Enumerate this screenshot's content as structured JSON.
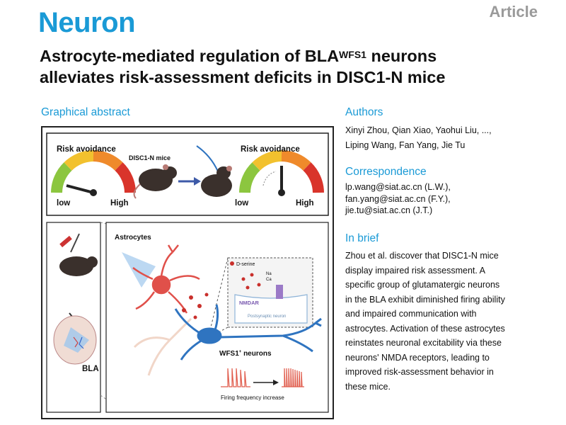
{
  "journal": "Neuron",
  "article_type": "Article",
  "title": {
    "part1": "Astrocyte-mediated regulation of BLA",
    "superscript": "WFS1",
    "part2": " neurons",
    "line2": "alleviates risk-assessment deficits in DISC1-N mice"
  },
  "graphical_abstract": {
    "heading": "Graphical abstract",
    "gauge_left_title": "Risk avoidance",
    "gauge_right_title": "Risk avoidance",
    "low": "low",
    "high": "High",
    "mice_label": "DISC1-N mice",
    "astrocytes_label": "Astrocytes",
    "bla_label": "BLA",
    "wfs1_label": "WFS1",
    "wfs1_sup": "+",
    "neurons_word": " neurons",
    "dserine_label": "D-serine",
    "na_label": "Na",
    "ca_label": "Ca",
    "nmdar_label": "NMDAR",
    "postsynaptic_label": "Postsynaptic neuron",
    "firing_label": "Firing frequency increase",
    "colors": {
      "gauge_green": "#8cc63f",
      "gauge_yellow": "#f2c12e",
      "gauge_orange": "#ef8a2b",
      "gauge_red": "#d9342b",
      "astrocyte": "#e0504a",
      "neuron": "#2f74c0",
      "firing": "#e05a4a"
    }
  },
  "authors": {
    "heading": "Authors",
    "line1": "Xinyi Zhou, Qian Xiao, Yaohui Liu, ...,",
    "line2": "Liping Wang, Fan Yang, Jie Tu"
  },
  "correspondence": {
    "heading": "Correspondence",
    "lines": [
      "lp.wang@siat.ac.cn (L.W.),",
      "fan.yang@siat.ac.cn (F.Y.),",
      "jie.tu@siat.ac.cn (J.T.)"
    ]
  },
  "in_brief": {
    "heading": "In brief",
    "lines": [
      "Zhou et al. discover that DISC1-N mice",
      "display impaired risk assessment. A",
      "specific group of glutamatergic neurons",
      "in the BLA exhibit diminished firing ability",
      "and impaired communication with",
      "astrocytes. Activation of these astrocytes",
      "reinstates neuronal excitability via these",
      "neurons' NMDA receptors, leading to",
      "improved risk-assessment behavior in",
      "these mice."
    ]
  }
}
